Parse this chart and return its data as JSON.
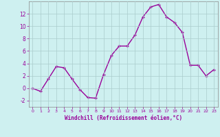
{
  "x": [
    0,
    1,
    2,
    3,
    4,
    5,
    6,
    7,
    8,
    9,
    10,
    11,
    12,
    13,
    14,
    15,
    16,
    17,
    18,
    19,
    20,
    21,
    22,
    23
  ],
  "y": [
    0,
    -0.5,
    1.5,
    3.5,
    3.3,
    1.5,
    -0.2,
    -1.5,
    -1.6,
    2.2,
    5.3,
    6.8,
    6.8,
    8.6,
    11.5,
    13.1,
    13.5,
    11.5,
    10.6,
    9.0,
    3.7,
    3.7,
    2.0,
    3.0
  ],
  "line_color": "#990099",
  "marker_color": "#990099",
  "bg_color": "#cef0f0",
  "grid_color": "#aacccc",
  "xlabel": "Windchill (Refroidissement éolien,°C)",
  "ylim": [
    -3,
    14
  ],
  "xlim": [
    -0.5,
    23.5
  ],
  "yticks": [
    -2,
    0,
    2,
    4,
    6,
    8,
    10,
    12
  ],
  "xticks": [
    0,
    1,
    2,
    3,
    4,
    5,
    6,
    7,
    8,
    9,
    10,
    11,
    12,
    13,
    14,
    15,
    16,
    17,
    18,
    19,
    20,
    21,
    22,
    23
  ],
  "tick_label_color": "#990099",
  "xlabel_color": "#990099",
  "linewidth": 1.0,
  "markersize": 2.5,
  "marker": "+"
}
